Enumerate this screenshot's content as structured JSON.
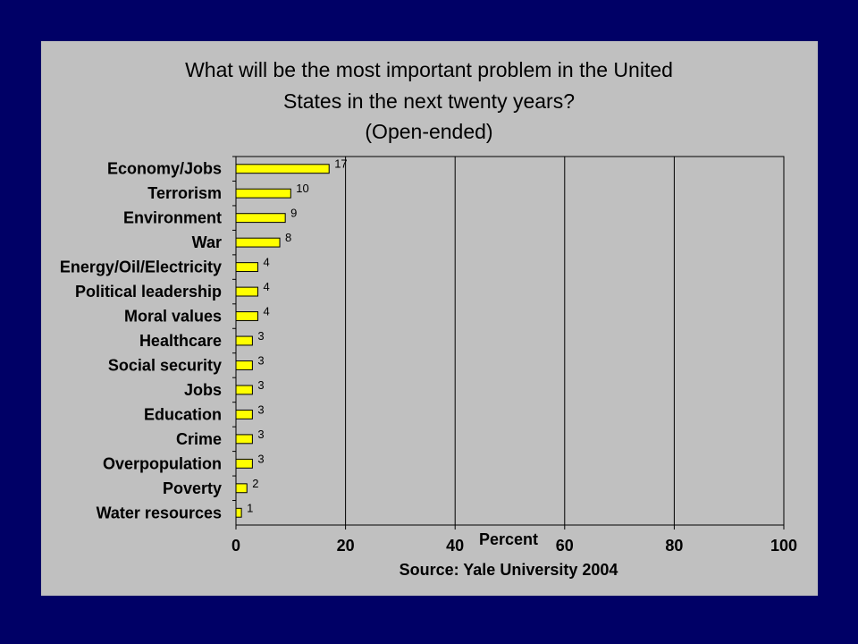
{
  "slide": {
    "title_lines": [
      "What will be the most important problem in the United",
      "States in the next twenty years?",
      "(Open-ended)"
    ],
    "source": "Source: Yale University 2004"
  },
  "colors": {
    "background": "#000066",
    "panel": "#c0c0c0",
    "bar": "#ffff00",
    "bar_outline": "#000000"
  },
  "chart_data": {
    "type": "bar",
    "orientation": "horizontal",
    "categories": [
      "Economy/Jobs",
      "Terrorism",
      "Environment",
      "War",
      "Energy/Oil/Electricity",
      "Political leadership",
      "Moral values",
      "Healthcare",
      "Social security",
      "Jobs",
      "Education",
      "Crime",
      "Overpopulation",
      "Poverty",
      "Water resources"
    ],
    "values": [
      17,
      10,
      9,
      8,
      4,
      4,
      4,
      3,
      3,
      3,
      3,
      3,
      3,
      2,
      1
    ],
    "data_labels": [
      "17",
      "10",
      "9",
      "8",
      "4",
      "4",
      "4",
      "3",
      "3",
      "3",
      "3",
      "3",
      "3",
      "2",
      "1"
    ],
    "xlabel": "Percent",
    "xlim": [
      0,
      100
    ],
    "xticks": [
      "0",
      "20",
      "40",
      "60",
      "80",
      "100"
    ],
    "grid": "vertical"
  }
}
